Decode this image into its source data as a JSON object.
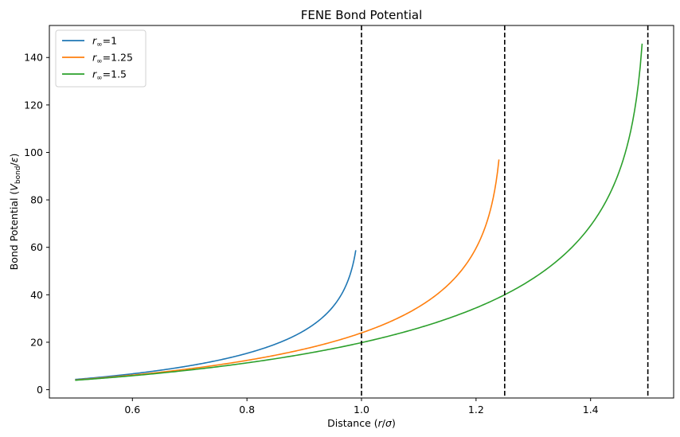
{
  "chart_data": {
    "type": "line",
    "title": "FENE Bond Potential",
    "xlabel": "Distance (r/σ)",
    "ylabel": "Bond Potential (V_bond/ε)",
    "xlim": [
      0.455,
      1.545
    ],
    "ylim": [
      -3.5,
      153.5
    ],
    "xticks": [
      0.6,
      0.8,
      1.0,
      1.2,
      1.4
    ],
    "xtick_labels": [
      "0.6",
      "0.8",
      "1.0",
      "1.2",
      "1.4"
    ],
    "yticks": [
      0,
      20,
      40,
      60,
      80,
      100,
      120,
      140
    ],
    "ytick_labels": [
      "0",
      "20",
      "40",
      "60",
      "80",
      "100",
      "120",
      "140"
    ],
    "grid": false,
    "legend": "top-left",
    "formula": {
      "k": 30,
      "r_min": 0.5,
      "points": 300
    },
    "series": [
      {
        "name": "r∞=1",
        "r_inf": 1.0,
        "r_max": 0.99,
        "color": "#1f77b4"
      },
      {
        "name": "r∞=1.25",
        "r_inf": 1.25,
        "r_max": 1.24,
        "color": "#ff7f0e"
      },
      {
        "name": "r∞=1.5",
        "r_inf": 1.5,
        "r_max": 1.49,
        "color": "#2ca02c"
      }
    ],
    "vlines": [
      {
        "x": 1.0,
        "color": "#000000",
        "style": "dashed"
      },
      {
        "x": 1.25,
        "color": "#000000",
        "style": "dashed"
      },
      {
        "x": 1.5,
        "color": "#000000",
        "style": "dashed"
      }
    ]
  }
}
